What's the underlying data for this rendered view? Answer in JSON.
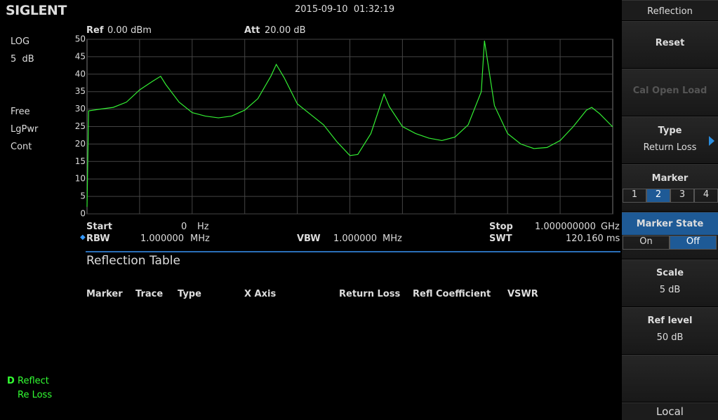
{
  "header": {
    "brand": "SIGLENT",
    "datetime": "2015-09-10  01:32:19"
  },
  "left_panel": {
    "scale_type": "LOG",
    "scale": "5  dB",
    "trigger": "Free",
    "detector": "LgPwr",
    "sweep": "Cont",
    "trace_mode": "D",
    "trace_label": "Reflect",
    "trace_sub": "Re Loss"
  },
  "chart_data": {
    "type": "line",
    "ref_label": "Ref",
    "ref_value": "0.00 dBm",
    "att_label": "Att",
    "att_value": "20.00 dB",
    "start_label": "Start",
    "start_value": "0",
    "start_unit": "Hz",
    "stop_label": "Stop",
    "stop_value": "1.000000000",
    "stop_unit": "GHz",
    "rbw_label": "RBW",
    "rbw_value": "1.000000",
    "rbw_unit": "MHz",
    "vbw_label": "VBW",
    "vbw_value": "1.000000",
    "vbw_unit": "MHz",
    "swt_label": "SWT",
    "swt_value": "120.160 ms",
    "xlim": [
      0,
      1
    ],
    "ylim": [
      0,
      50
    ],
    "yticks": [
      0,
      5,
      10,
      15,
      20,
      25,
      30,
      35,
      40,
      45,
      50
    ],
    "grid": true,
    "x": [
      0,
      0.003,
      0.025,
      0.05,
      0.075,
      0.1,
      0.125,
      0.14,
      0.15,
      0.175,
      0.2,
      0.225,
      0.25,
      0.275,
      0.3,
      0.325,
      0.35,
      0.36,
      0.375,
      0.4,
      0.425,
      0.45,
      0.475,
      0.5,
      0.515,
      0.54,
      0.565,
      0.575,
      0.6,
      0.625,
      0.65,
      0.675,
      0.7,
      0.725,
      0.75,
      0.756,
      0.775,
      0.8,
      0.825,
      0.85,
      0.875,
      0.9,
      0.925,
      0.95,
      0.96,
      0.975,
      1.0
    ],
    "series": [
      {
        "color": "#33ee33",
        "values": [
          2,
          29.5,
          30,
          30.5,
          32,
          35.5,
          38,
          39.4,
          37,
          32,
          29,
          28,
          27.5,
          28,
          29.7,
          33,
          39.5,
          42.8,
          39,
          31.5,
          28.5,
          25.5,
          20.7,
          16.7,
          17,
          23,
          34.3,
          30.7,
          25,
          23,
          21.7,
          21,
          22,
          25.5,
          35,
          49.6,
          31,
          23,
          20,
          18.7,
          19,
          21,
          25,
          29.7,
          30.5,
          28.7,
          24.9
        ]
      }
    ]
  },
  "table": {
    "title": "Reflection Table",
    "columns": [
      "Marker",
      "Trace",
      "Type",
      "X Axis",
      "Return Loss",
      "Refl Coefficient",
      "VSWR"
    ]
  },
  "menu": {
    "title": "Reflection",
    "reset": "Reset",
    "cal_open_load": "Cal Open Load",
    "type": {
      "label": "Type",
      "value": "Return Loss"
    },
    "marker": {
      "label": "Marker",
      "options": [
        "1",
        "2",
        "3",
        "4"
      ]
    },
    "marker_state": {
      "label": "Marker State",
      "options": [
        "On",
        "Off"
      ]
    },
    "scale": {
      "label": "Scale",
      "value": "5 dB"
    },
    "ref_level": {
      "label": "Ref level",
      "value": "50 dB"
    },
    "local": "Local"
  }
}
